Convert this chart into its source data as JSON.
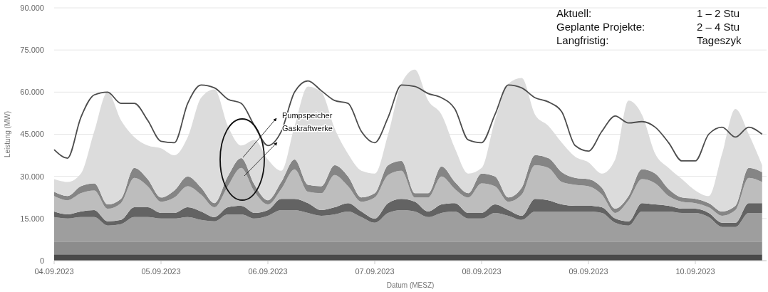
{
  "chart_data": {
    "type": "area",
    "stacked": true,
    "ylabel": "Leistung (MW)",
    "xlabel": "Datum (MESZ)",
    "grid": "y",
    "xlim": [
      "2023-09-04T00:00",
      "2023-09-10T16:00"
    ],
    "ylim": [
      0,
      90000
    ],
    "yticks": [
      0,
      {
        "value": 15000,
        "label": "15.000"
      },
      {
        "value": 30000,
        "label": "30.000"
      },
      {
        "value": 45000,
        "label": "45.000"
      },
      {
        "value": 60000,
        "label": "60.000"
      },
      {
        "value": 75000,
        "label": "75.000"
      },
      {
        "value": 90000,
        "label": "90.000"
      }
    ],
    "xticks": [
      {
        "value": "2023-09-04",
        "label": "04.09.2023"
      },
      {
        "value": "2023-09-05",
        "label": "05.09.2023"
      },
      {
        "value": "2023-09-06",
        "label": "06.09.2023"
      },
      {
        "value": "2023-09-07",
        "label": "07.09.2023"
      },
      {
        "value": "2023-09-08",
        "label": "08.09.2023"
      },
      {
        "value": "2023-09-09",
        "label": "09.09.2023"
      },
      {
        "value": "2023-09-10",
        "label": "10.09.2023"
      }
    ],
    "x": [
      "2023-09-04T00:00",
      "2023-09-04T03:00",
      "2023-09-04T06:00",
      "2023-09-04T09:00",
      "2023-09-04T12:00",
      "2023-09-04T15:00",
      "2023-09-04T18:00",
      "2023-09-04T21:00",
      "2023-09-05T00:00",
      "2023-09-05T03:00",
      "2023-09-05T06:00",
      "2023-09-05T09:00",
      "2023-09-05T12:00",
      "2023-09-05T15:00",
      "2023-09-05T18:00",
      "2023-09-05T21:00",
      "2023-09-06T00:00",
      "2023-09-06T03:00",
      "2023-09-06T06:00",
      "2023-09-06T09:00",
      "2023-09-06T12:00",
      "2023-09-06T15:00",
      "2023-09-06T18:00",
      "2023-09-06T21:00",
      "2023-09-07T00:00",
      "2023-09-07T03:00",
      "2023-09-07T06:00",
      "2023-09-07T09:00",
      "2023-09-07T12:00",
      "2023-09-07T15:00",
      "2023-09-07T18:00",
      "2023-09-07T21:00",
      "2023-09-08T00:00",
      "2023-09-08T03:00",
      "2023-09-08T06:00",
      "2023-09-08T09:00",
      "2023-09-08T12:00",
      "2023-09-08T15:00",
      "2023-09-08T18:00",
      "2023-09-08T21:00",
      "2023-09-09T00:00",
      "2023-09-09T03:00",
      "2023-09-09T06:00",
      "2023-09-09T09:00",
      "2023-09-09T12:00",
      "2023-09-09T15:00",
      "2023-09-09T18:00",
      "2023-09-09T21:00",
      "2023-09-10T00:00",
      "2023-09-10T03:00",
      "2023-09-10T06:00",
      "2023-09-10T09:00",
      "2023-09-10T12:00",
      "2023-09-10T15:00"
    ],
    "series": [
      {
        "color": "#4a4a4a",
        "values": [
          2200,
          2200,
          2200,
          2200,
          2200,
          2200,
          2200,
          2200,
          2200,
          2200,
          2200,
          2200,
          2200,
          2200,
          2200,
          2200,
          2200,
          2200,
          2200,
          2200,
          2200,
          2200,
          2200,
          2200,
          2200,
          2200,
          2200,
          2200,
          2200,
          2200,
          2200,
          2200,
          2200,
          2200,
          2200,
          2200,
          2200,
          2200,
          2200,
          2200,
          2200,
          2200,
          2200,
          2200,
          2200,
          2200,
          2200,
          2200,
          2200,
          2200,
          2200,
          2200,
          2200,
          2200
        ]
      },
      {
        "color": "#8c8c8c",
        "values": [
          4600,
          4600,
          4600,
          4600,
          4600,
          4600,
          4600,
          4600,
          4600,
          4600,
          4600,
          4600,
          4600,
          4600,
          4600,
          4600,
          4600,
          4600,
          4600,
          4600,
          4600,
          4600,
          4600,
          4600,
          4600,
          4600,
          4600,
          4600,
          4600,
          4600,
          4600,
          4600,
          4600,
          4600,
          4600,
          4600,
          4600,
          4600,
          4600,
          4600,
          4600,
          4600,
          4600,
          4600,
          4600,
          4600,
          4600,
          4600,
          4600,
          4600,
          4600,
          4600,
          4600,
          4600
        ]
      },
      {
        "color": "#9e9e9e",
        "values": [
          8700,
          8200,
          8700,
          8700,
          5700,
          6200,
          8700,
          8700,
          8200,
          8200,
          8700,
          7700,
          7200,
          9700,
          9700,
          8200,
          9200,
          11200,
          11200,
          10200,
          9200,
          9700,
          10700,
          8700,
          6700,
          10200,
          11200,
          10700,
          8700,
          10200,
          10700,
          8200,
          8200,
          10200,
          9200,
          7700,
          10700,
          10700,
          10700,
          10700,
          10700,
          10200,
          6700,
          5700,
          10700,
          10700,
          10700,
          10200,
          10200,
          8700,
          5200,
          5200,
          10200,
          10200
        ]
      },
      {
        "color": "#636363",
        "values": [
          2000,
          1500,
          2000,
          2500,
          1500,
          1500,
          3500,
          3500,
          2000,
          2000,
          3500,
          3000,
          1500,
          2500,
          3000,
          2000,
          2000,
          4000,
          4000,
          3500,
          2000,
          2500,
          3000,
          2000,
          1500,
          3500,
          4000,
          3500,
          2000,
          3000,
          3000,
          2000,
          2000,
          3000,
          2000,
          1500,
          4500,
          4000,
          2500,
          2000,
          2000,
          2000,
          1500,
          1500,
          3000,
          2500,
          2000,
          1500,
          1500,
          1500,
          1500,
          1500,
          3500,
          3500
        ]
      },
      {
        "color": "#bdbdbd",
        "values": [
          5500,
          5000,
          6500,
          7000,
          4500,
          6000,
          10500,
          7500,
          4000,
          5500,
          7500,
          6000,
          3500,
          7500,
          13500,
          7500,
          2000,
          3500,
          10500,
          4000,
          6000,
          11500,
          6000,
          3500,
          7500,
          10000,
          10000,
          1500,
          5000,
          10000,
          5000,
          5500,
          10500,
          6500,
          3000,
          7500,
          12000,
          11500,
          8000,
          7500,
          7000,
          4500,
          2000,
          7500,
          8500,
          7500,
          3500,
          2500,
          2000,
          2000,
          2500,
          4500,
          9000,
          7500
        ]
      },
      {
        "color": "#858585",
        "values": [
          1500,
          1500,
          2500,
          2500,
          1500,
          1500,
          3500,
          2500,
          1500,
          2500,
          3500,
          2500,
          1500,
          3500,
          3500,
          2500,
          1500,
          2500,
          3500,
          2500,
          2500,
          3500,
          3500,
          1500,
          1500,
          3500,
          3500,
          1500,
          1500,
          3500,
          2500,
          1500,
          3500,
          3500,
          1500,
          2500,
          3500,
          3500,
          3500,
          2500,
          2500,
          2500,
          1500,
          1500,
          3500,
          3500,
          2500,
          1500,
          1500,
          1500,
          1500,
          1500,
          3500,
          3500
        ]
      },
      {
        "color": "#dcdcdc",
        "values": [
          4500,
          5000,
          4500,
          18500,
          40000,
          28000,
          11000,
          12000,
          17500,
          12500,
          14000,
          32000,
          40500,
          18000,
          4500,
          16000,
          14500,
          4000,
          12000,
          35000,
          33500,
          13000,
          8000,
          9500,
          7000,
          11000,
          27500,
          44000,
          33000,
          18500,
          12000,
          7000,
          2000,
          20000,
          40500,
          39000,
          14500,
          11500,
          10500,
          7500,
          6000,
          5000,
          17500,
          34000,
          19500,
          7000,
          7500,
          6500,
          3000,
          2500,
          20500,
          34500,
          12000,
          2500
        ]
      },
      {
        "type": "line",
        "color": "#4d4d4d",
        "values": [
          39500,
          36500,
          51000,
          59000,
          60000,
          56000,
          56000,
          50000,
          42500,
          42000,
          56000,
          62500,
          61500,
          57500,
          56000,
          48000,
          41000,
          46000,
          60000,
          64000,
          60500,
          57000,
          56000,
          46000,
          42000,
          51000,
          62500,
          62000,
          59500,
          58000,
          54000,
          43000,
          42000,
          52000,
          62500,
          61500,
          58000,
          56500,
          53000,
          41000,
          39000,
          46000,
          51500,
          49000,
          49500,
          47500,
          42000,
          35500,
          35500,
          45000,
          47500,
          44000,
          47500,
          45000
        ]
      }
    ],
    "annotations": [
      "Pumpspeicher",
      "Gaskraftwerke",
      "Aktuell:",
      "1 – 2 Stu",
      "Geplante Projekte:",
      "2 – 4 Stu",
      "Langfristig:",
      "Tageszyk"
    ]
  }
}
